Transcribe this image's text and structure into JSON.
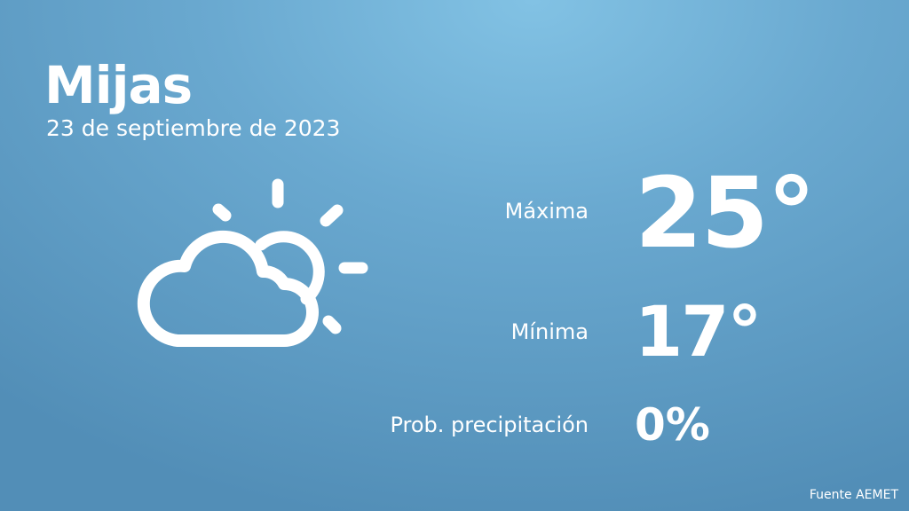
{
  "header": {
    "city": "Mijas",
    "date": "23 de septiembre de 2023"
  },
  "weather": {
    "icon": "partly-cloudy-icon",
    "max_label": "Máxima",
    "max_value": "25°",
    "min_label": "Mínima",
    "min_value": "17°",
    "precip_label": "Prob. precipitación",
    "precip_value": "0%"
  },
  "footer": {
    "source": "Fuente AEMET"
  },
  "colors": {
    "background_top": "#82c2e4",
    "background_bottom": "#528eb7",
    "text": "#ffffff"
  }
}
